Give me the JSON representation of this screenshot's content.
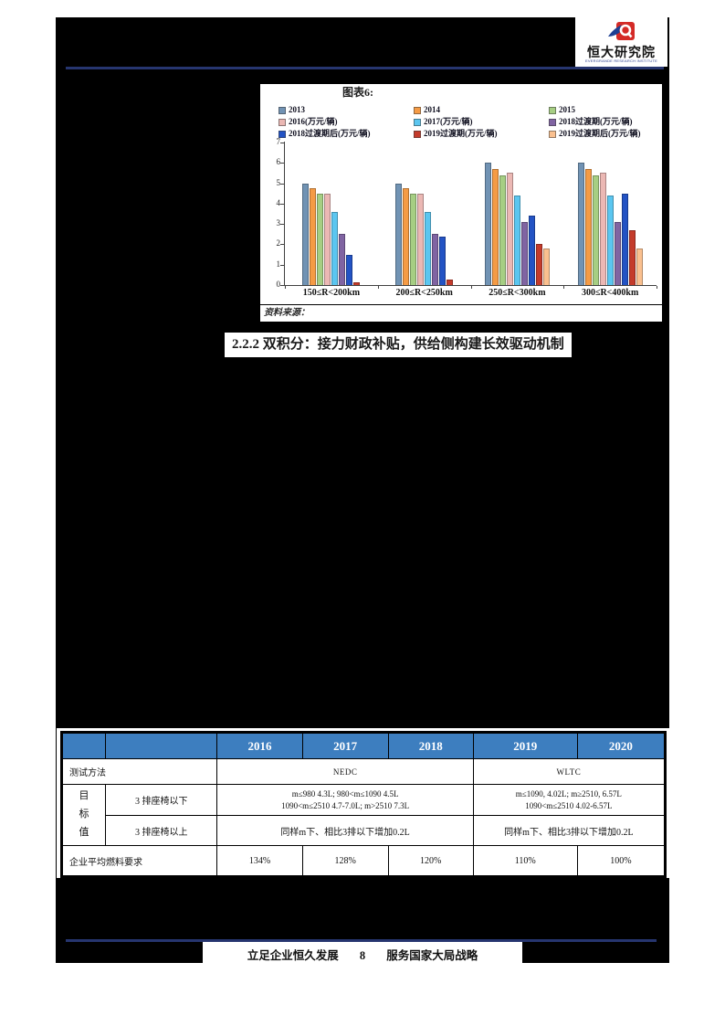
{
  "header": {
    "logo_cn": "恒大研究院",
    "logo_en": "EVERGRANDE RESEARCH INSTITUTE"
  },
  "figure": {
    "caption": "图表6:",
    "source_label": "资料来源："
  },
  "section": {
    "heading": "2.2.2 双积分：接力财政补贴，供给侧构建长效驱动机制"
  },
  "chart_data": {
    "type": "bar",
    "title": "图表6:",
    "categories": [
      "150≤R<200km",
      "200≤R<250km",
      "250≤R<300km",
      "300≤R<400km"
    ],
    "series": [
      {
        "name": "2013",
        "color": "#7193B4",
        "values": [
          5.0,
          5.0,
          6.0,
          6.0
        ]
      },
      {
        "name": "2014",
        "color": "#F59B45",
        "values": [
          4.75,
          4.75,
          5.7,
          5.7
        ]
      },
      {
        "name": "2015",
        "color": "#A6CE83",
        "values": [
          4.5,
          4.5,
          5.4,
          5.4
        ]
      },
      {
        "name": "2016(万元/辆)",
        "color": "#EBB8B4",
        "values": [
          4.5,
          4.5,
          5.5,
          5.5
        ]
      },
      {
        "name": "2017(万元/辆)",
        "color": "#5BC6F0",
        "values": [
          3.6,
          3.6,
          4.4,
          4.4
        ]
      },
      {
        "name": "2018过渡期(万元/辆)",
        "color": "#8064A2",
        "values": [
          2.5,
          2.5,
          3.1,
          3.1
        ]
      },
      {
        "name": "2018过渡期后(万元/辆)",
        "color": "#2353C4",
        "values": [
          1.5,
          2.4,
          3.4,
          4.5
        ]
      },
      {
        "name": "2019过渡期(万元/辆)",
        "color": "#C43B2B",
        "values": [
          0.15,
          0.25,
          2.0,
          2.7
        ]
      },
      {
        "name": "2019过渡期后(万元/辆)",
        "color": "#FAC08F",
        "values": [
          0,
          0,
          1.8,
          1.8
        ]
      }
    ],
    "xlabel": "",
    "ylabel": "",
    "ylim": [
      0,
      7
    ],
    "yticks": [
      0,
      1,
      2,
      3,
      4,
      5,
      6,
      7
    ],
    "legend_position": "top",
    "grid": false
  },
  "table": {
    "years": [
      "2016",
      "2017",
      "2018",
      "2019",
      "2020"
    ],
    "test_method_label": "测试方法",
    "nedc": "NEDC",
    "wltc": "WLTC",
    "target_label": "目标值",
    "row_below_label": "3 排座椅以下",
    "below_nedc_line1": "m≤980 4.3L; 980<m≤1090 4.5L",
    "below_nedc_line2": "1090<m≤2510 4.7-7.0L; m>2510 7.3L",
    "below_wltc_line1": "m≤1090, 4.02L; m≥2510, 6.57L",
    "below_wltc_line2": "1090<m≤2510 4.02-6.57L",
    "row_above_label": "3 排座椅以上",
    "above_nedc": "同样m下、相比3排以下增加0.2L",
    "above_wltc": "同样m下、相比3排以下增加0.2L",
    "fuel_label": "企业平均燃料要求",
    "fuel_values": [
      "134%",
      "128%",
      "120%",
      "110%",
      "100%"
    ]
  },
  "footer": {
    "slogan_left": "立足企业恒久发展",
    "page_number": "8",
    "slogan_right": "服务国家大局战略"
  },
  "colors": {
    "accent_rule": "#26356F",
    "table_header_bg": "#3D7EBF",
    "logo_red": "#D42B27",
    "logo_blue": "#1D3F93"
  }
}
